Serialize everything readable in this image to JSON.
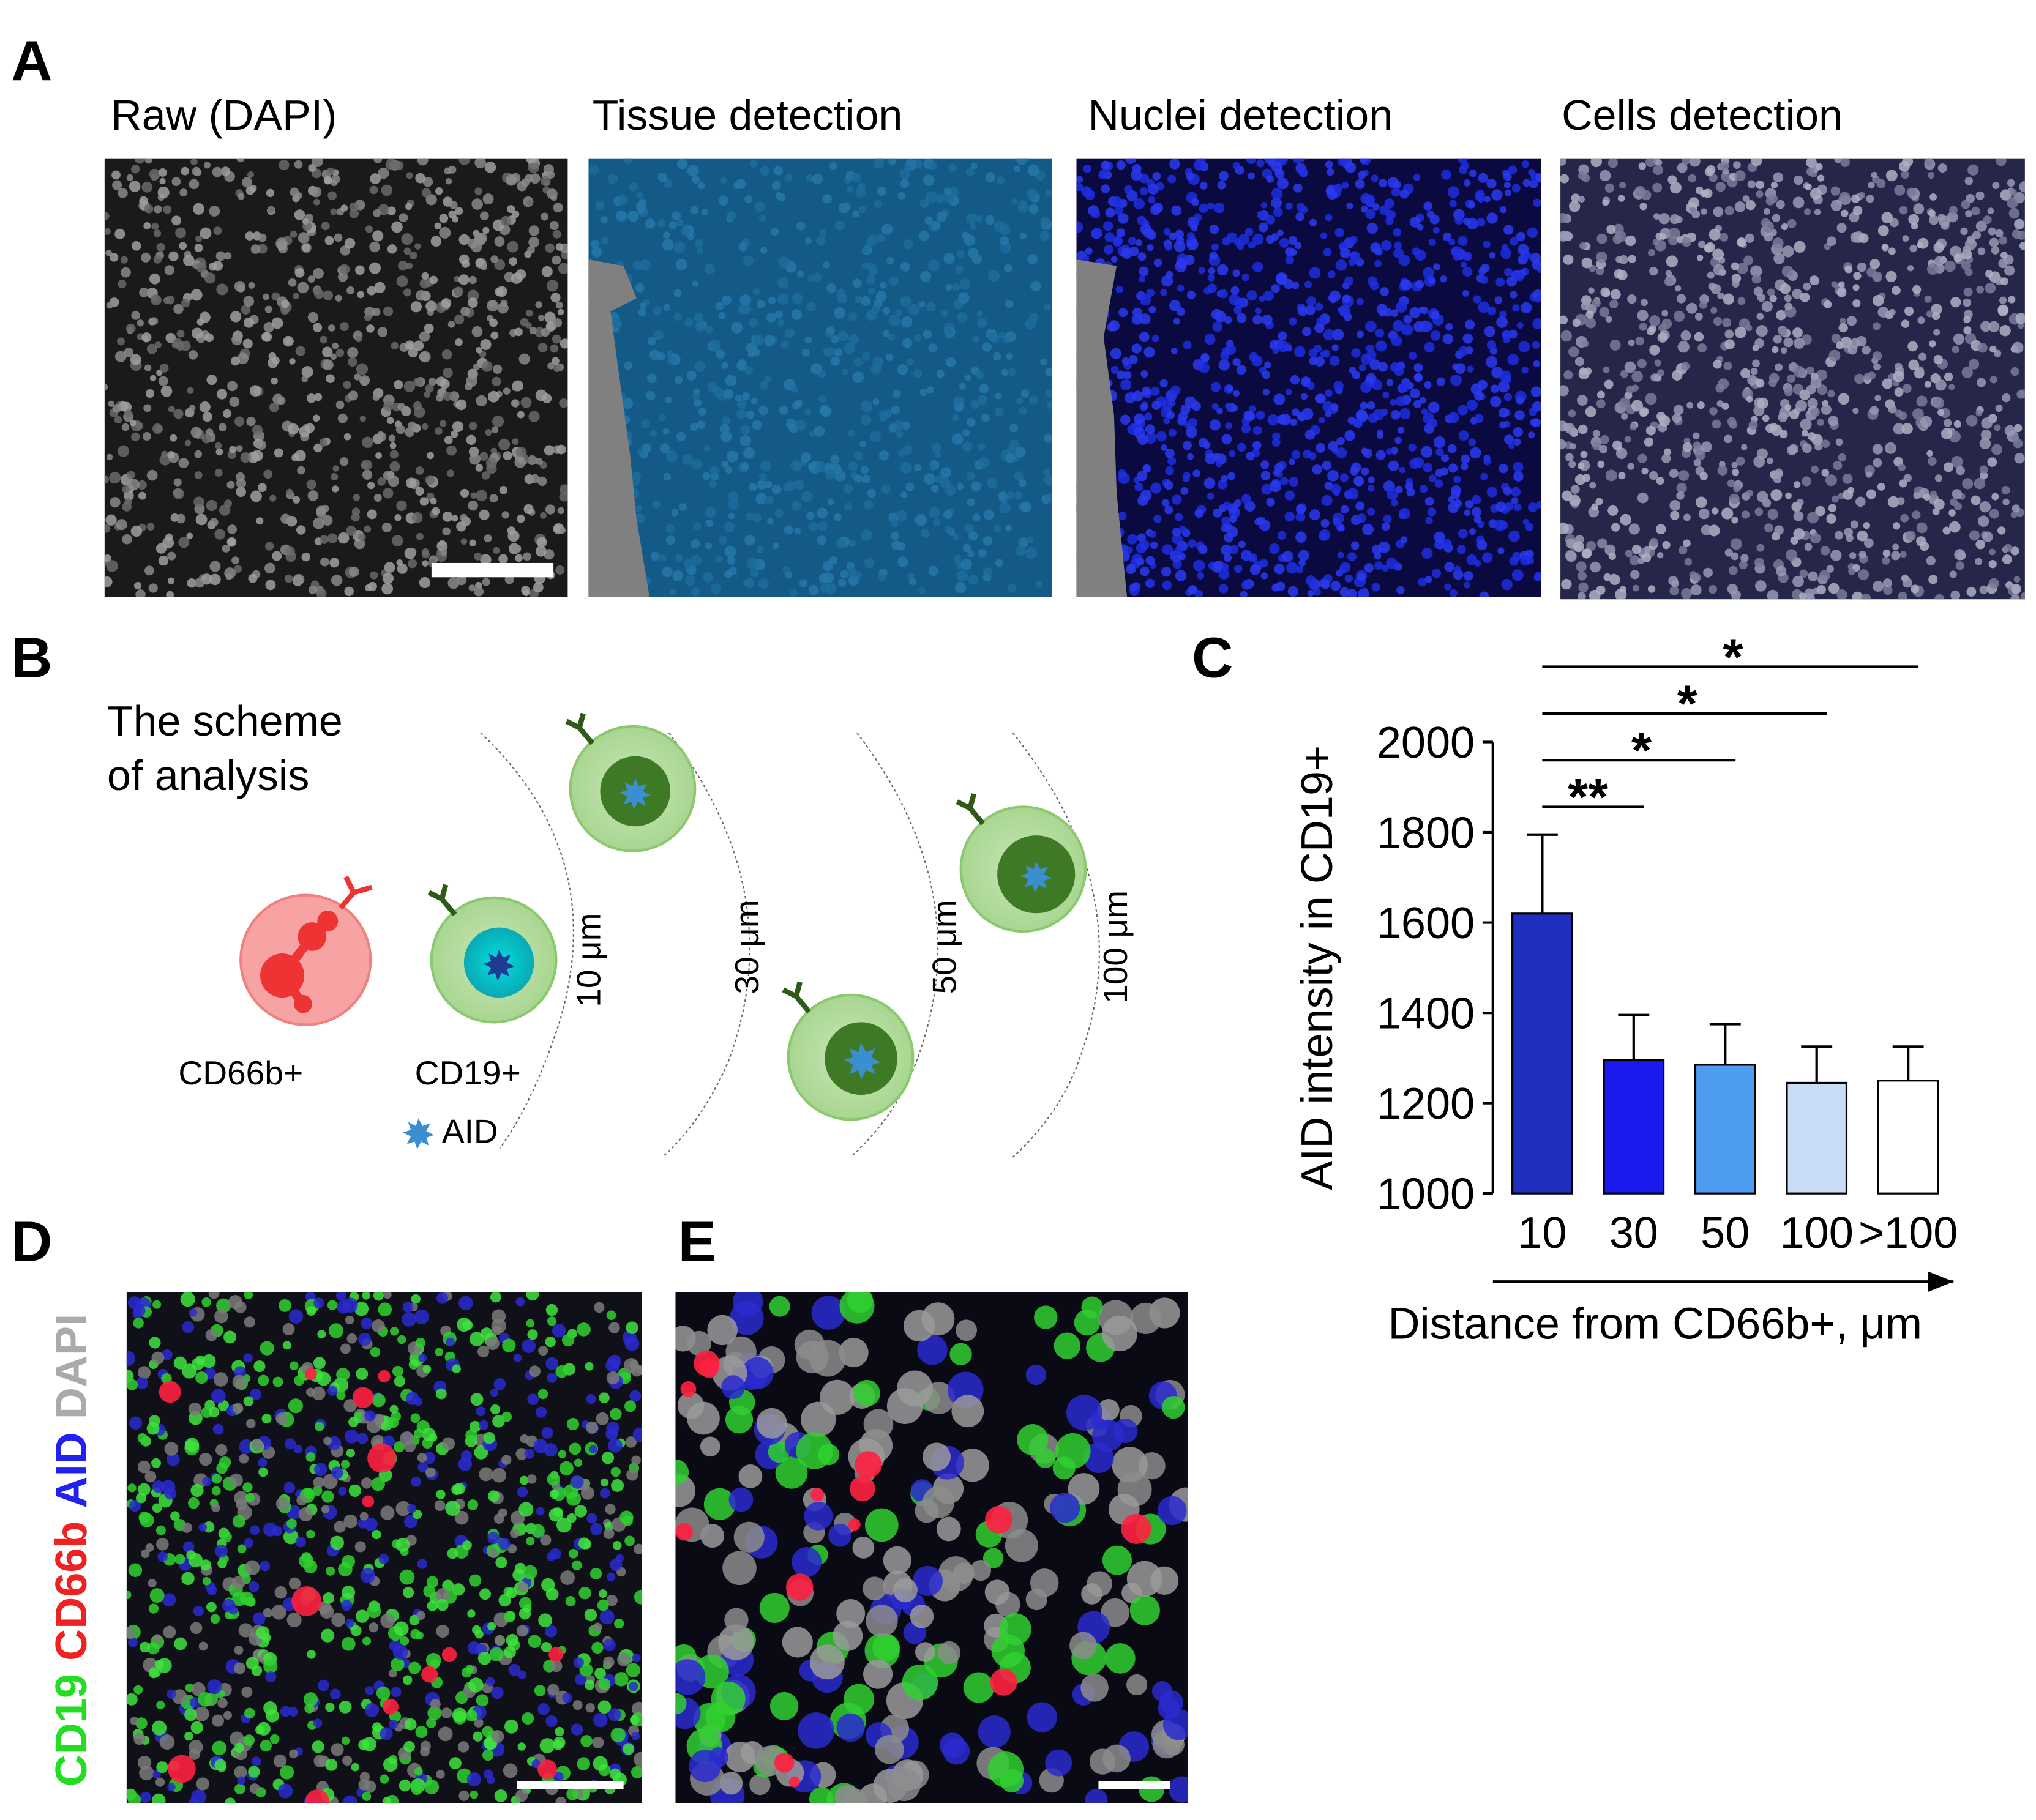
{
  "panel_labels": [
    "A",
    "B",
    "C",
    "D",
    "E"
  ],
  "panel_a": {
    "titles": [
      "Raw (DAPI)",
      "Tissue detection",
      "Nuclei detection",
      "Cells detection"
    ]
  },
  "panel_b": {
    "title_lines": [
      "The scheme",
      "of analysis"
    ],
    "cell_labels": [
      "CD66b+",
      "CD19+"
    ],
    "legend": "AID",
    "distances": [
      "10 μm",
      "30 μm",
      "50 μm",
      "100 μm"
    ]
  },
  "chart_data": {
    "type": "bar",
    "ylabel": "AID intensity in CD19+",
    "xlabel": "Distance from CD66b+, μm",
    "categories": [
      "10",
      "30",
      "50",
      "100",
      ">100"
    ],
    "values": [
      1620,
      1295,
      1285,
      1245,
      1250
    ],
    "errors": [
      175,
      100,
      90,
      80,
      75
    ],
    "colors": [
      "#1f2fbf",
      "#1a1aee",
      "#4d9cf0",
      "#c8dcf5",
      "#ffffff"
    ],
    "ylim": [
      1000,
      2000
    ],
    "yticks": [
      1000,
      1200,
      1400,
      1600,
      1800,
      2000
    ],
    "annotations": [
      {
        "text": "**",
        "from": 0,
        "to": 1
      },
      {
        "text": "*",
        "from": 0,
        "to": 2
      },
      {
        "text": "*",
        "from": 0,
        "to": 3
      },
      {
        "text": "*",
        "from": 0,
        "to": 4
      }
    ]
  },
  "panel_d": {
    "stain_labels": [
      {
        "text": "CD19",
        "color": "#22dd22"
      },
      {
        "text": "CD66b",
        "color": "#ee2222"
      },
      {
        "text": "AID",
        "color": "#2222ee"
      },
      {
        "text": "DAPI",
        "color": "#aaaaaa"
      }
    ]
  }
}
